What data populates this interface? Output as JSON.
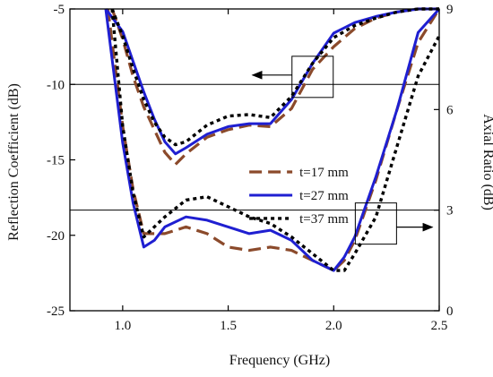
{
  "chart_data": {
    "type": "line",
    "xlabel": "Frequency (GHz)",
    "ylabel_left": "Reflection Coefficient (dB)",
    "ylabel_right": "Axial Ratio (dB)",
    "xlim": [
      0.75,
      2.5
    ],
    "ylim_left": [
      -25,
      -5
    ],
    "ylim_right": [
      0,
      9
    ],
    "x_ticks": [
      1.0,
      1.5,
      2.0,
      2.5
    ],
    "x_tick_labels": [
      "1.0",
      "1.5",
      "2.0",
      "2.5"
    ],
    "yleft_ticks": [
      -25,
      -20,
      -15,
      -10,
      -5
    ],
    "yleft_tick_labels": [
      "-25",
      "-20",
      "-15",
      "-10",
      "-5"
    ],
    "yright_ticks": [
      0,
      3,
      6,
      9
    ],
    "yright_tick_labels": [
      "0",
      "3",
      "6",
      "9"
    ],
    "reference_lines": [
      {
        "axis": "left",
        "value": -10
      },
      {
        "axis": "right",
        "value": 3
      }
    ],
    "annotations": [
      {
        "label": "arrow to left axis",
        "near_x": 1.9,
        "near_y_left": -9.5,
        "direction": "left",
        "target_axis": "left"
      },
      {
        "label": "arrow to right axis",
        "near_x": 2.2,
        "near_y_right": 2.6,
        "direction": "right",
        "target_axis": "right"
      }
    ],
    "legend_position": "center-right",
    "series": [
      {
        "name": "t=17 mm",
        "color": "#8B4A2B",
        "dash": "dashed",
        "reflection_coefficient": {
          "x": [
            0.95,
            1.0,
            1.05,
            1.1,
            1.15,
            1.2,
            1.25,
            1.3,
            1.4,
            1.5,
            1.6,
            1.7,
            1.8,
            1.9,
            2.0,
            2.1,
            2.2,
            2.3,
            2.4,
            2.5
          ],
          "y": [
            -5.0,
            -7.0,
            -9.5,
            -11.5,
            -13.0,
            -14.5,
            -15.3,
            -14.6,
            -13.5,
            -13.0,
            -12.7,
            -12.8,
            -11.6,
            -9.0,
            -7.5,
            -6.3,
            -5.6,
            -5.2,
            -5.0,
            -5.0
          ]
        },
        "axial_ratio": {
          "x": [
            0.93,
            1.0,
            1.05,
            1.1,
            1.2,
            1.3,
            1.4,
            1.5,
            1.6,
            1.7,
            1.8,
            1.9,
            2.0,
            2.05,
            2.1,
            2.2,
            2.3,
            2.4,
            2.5
          ],
          "y": [
            9.0,
            5.5,
            3.6,
            2.3,
            2.3,
            2.5,
            2.3,
            1.9,
            1.8,
            1.9,
            1.8,
            1.5,
            1.2,
            1.5,
            2.1,
            3.9,
            6.0,
            8.0,
            9.0
          ]
        }
      },
      {
        "name": "t=27 mm",
        "color": "#1F1FD1",
        "dash": "solid",
        "reflection_coefficient": {
          "x": [
            0.92,
            1.0,
            1.05,
            1.1,
            1.15,
            1.2,
            1.25,
            1.3,
            1.4,
            1.5,
            1.6,
            1.7,
            1.8,
            1.9,
            2.0,
            2.1,
            2.2,
            2.3,
            2.4,
            2.5
          ],
          "y": [
            -5.0,
            -6.5,
            -8.5,
            -10.5,
            -12.3,
            -13.8,
            -14.6,
            -14.2,
            -13.3,
            -12.8,
            -12.6,
            -12.6,
            -11.0,
            -8.6,
            -6.6,
            -5.9,
            -5.5,
            -5.2,
            -5.0,
            -5.0
          ]
        },
        "axial_ratio": {
          "x": [
            0.92,
            1.0,
            1.05,
            1.1,
            1.15,
            1.2,
            1.3,
            1.4,
            1.5,
            1.6,
            1.7,
            1.8,
            1.9,
            2.0,
            2.05,
            2.1,
            2.2,
            2.3,
            2.4,
            2.5
          ],
          "y": [
            9.0,
            5.0,
            3.2,
            1.9,
            2.1,
            2.5,
            2.8,
            2.7,
            2.5,
            2.3,
            2.4,
            2.1,
            1.5,
            1.2,
            1.6,
            2.2,
            4.0,
            6.0,
            8.3,
            9.0
          ]
        }
      },
      {
        "name": "t=37 mm",
        "color": "#000000",
        "dash": "dotted",
        "reflection_coefficient": {
          "x": [
            0.95,
            1.0,
            1.05,
            1.1,
            1.15,
            1.2,
            1.25,
            1.3,
            1.4,
            1.5,
            1.6,
            1.7,
            1.8,
            1.9,
            2.0,
            2.1,
            2.2,
            2.3,
            2.4,
            2.5
          ],
          "y": [
            -5.0,
            -6.8,
            -9.0,
            -11.0,
            -12.5,
            -13.5,
            -14.0,
            -13.8,
            -12.7,
            -12.1,
            -12.0,
            -12.2,
            -10.8,
            -8.6,
            -6.9,
            -6.1,
            -5.6,
            -5.2,
            -5.0,
            -5.0
          ]
        },
        "axial_ratio": {
          "x": [
            0.95,
            1.0,
            1.05,
            1.1,
            1.2,
            1.3,
            1.4,
            1.5,
            1.6,
            1.7,
            1.8,
            1.9,
            2.0,
            2.05,
            2.1,
            2.2,
            2.3,
            2.4,
            2.5
          ],
          "y": [
            9.0,
            5.5,
            3.5,
            2.2,
            2.8,
            3.3,
            3.4,
            3.1,
            2.8,
            2.6,
            2.2,
            1.7,
            1.2,
            1.2,
            1.7,
            2.8,
            4.9,
            7.0,
            8.2
          ]
        }
      }
    ]
  }
}
